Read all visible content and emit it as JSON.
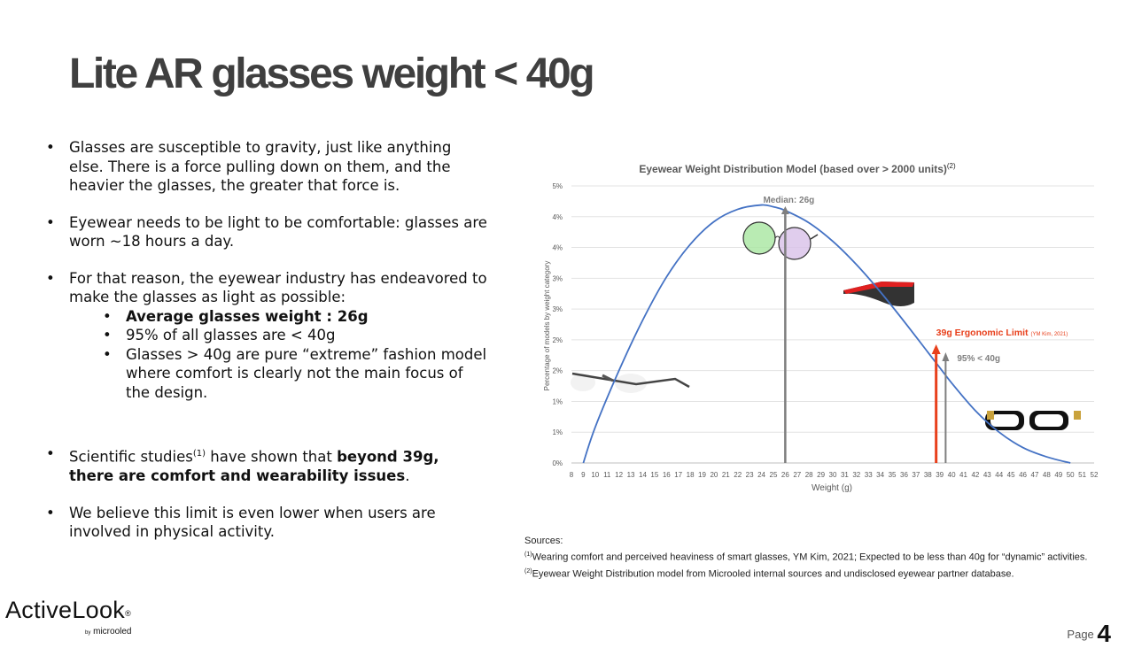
{
  "title": "Lite AR glasses weight < 40g",
  "bullets": {
    "b1": "Glasses are susceptible to gravity, just like anything else. There is a force pulling down on them, and the heavier the glasses, the greater that force is.",
    "b2": "Eyewear needs to be light to be comfortable: glasses are worn ~18 hours a day.",
    "b3": "For that reason, the eyewear industry has endeavored to make the glasses as light as possible:",
    "b3_sub1": "Average glasses weight : 26g",
    "b3_sub2": "95% of all glasses are < 40g",
    "b3_sub3": "Glasses > 40g are pure “extreme” fashion model where comfort is clearly not the main focus of the design.",
    "b4_pre": "Scientific studies",
    "b4_sup": "(1)",
    "b4_mid": " have shown that ",
    "b4_bold": "beyond 39g, there are comfort and wearability issues",
    "b4_end": ".",
    "b5": "We believe this limit is even lower when users are involved in physical activity."
  },
  "chart_data": {
    "type": "line",
    "title": "Eyewear Weight Distribution Model (based over > 2000 units)",
    "title_sup": "(2)",
    "xlabel": "Weight (g)",
    "ylabel": "Percentage of models by weight category",
    "x": [
      8,
      9,
      10,
      11,
      12,
      13,
      14,
      15,
      16,
      17,
      18,
      19,
      20,
      21,
      22,
      23,
      24,
      25,
      26,
      27,
      28,
      29,
      30,
      31,
      32,
      33,
      34,
      35,
      36,
      37,
      38,
      39,
      40,
      41,
      42,
      43,
      44,
      45,
      46,
      47,
      48,
      49,
      50,
      51,
      52
    ],
    "ytick_labels": [
      "0%",
      "1%",
      "1%",
      "2%",
      "2%",
      "3%",
      "3%",
      "4%",
      "4%",
      "5%"
    ],
    "ylim": [
      0,
      4.5
    ],
    "grid": true,
    "series": [
      {
        "points": [
          [
            9,
            0
          ],
          [
            10,
            0.58
          ],
          [
            12,
            1.5
          ],
          [
            14,
            2.32
          ],
          [
            16,
            3.02
          ],
          [
            18,
            3.55
          ],
          [
            20,
            3.92
          ],
          [
            22,
            4.12
          ],
          [
            24,
            4.19
          ],
          [
            25,
            4.16
          ],
          [
            26,
            4.1
          ],
          [
            28,
            3.9
          ],
          [
            30,
            3.6
          ],
          [
            32,
            3.22
          ],
          [
            34,
            2.78
          ],
          [
            36,
            2.3
          ],
          [
            38,
            1.8
          ],
          [
            39,
            1.55
          ],
          [
            40,
            1.3
          ],
          [
            42,
            0.85
          ],
          [
            44,
            0.5
          ],
          [
            46,
            0.25
          ],
          [
            48,
            0.1
          ],
          [
            50,
            0
          ]
        ],
        "color": "#4472c4"
      }
    ],
    "annotations": {
      "median_label": "Median: 26g",
      "median_x": 26,
      "limit_label": "39g Ergonomic Limit",
      "limit_source": "(YM Kim, 2021)",
      "limit_x": 38.7,
      "p95_label": "95% < 40g",
      "p95_x": 39.5
    },
    "colors": {
      "median": "#7f7f7f",
      "limit": "#e8401c",
      "limit_text": "#e8401c"
    }
  },
  "sources": {
    "heading": "Sources:",
    "s1_sup": "(1)",
    "s1": "Wearing comfort and perceived heaviness of smart glasses, YM Kim, 2021;  Expected to be less than 40g for “dynamic” activities.",
    "s2_sup": "(2)",
    "s2": "Eyewear Weight Distribution model from Microoled internal sources and undisclosed eyewear partner database."
  },
  "logo": {
    "name": "ActiveLook",
    "reg": "®",
    "by": "by",
    "company": "microoled"
  },
  "page": {
    "label": "Page",
    "number": "4"
  }
}
